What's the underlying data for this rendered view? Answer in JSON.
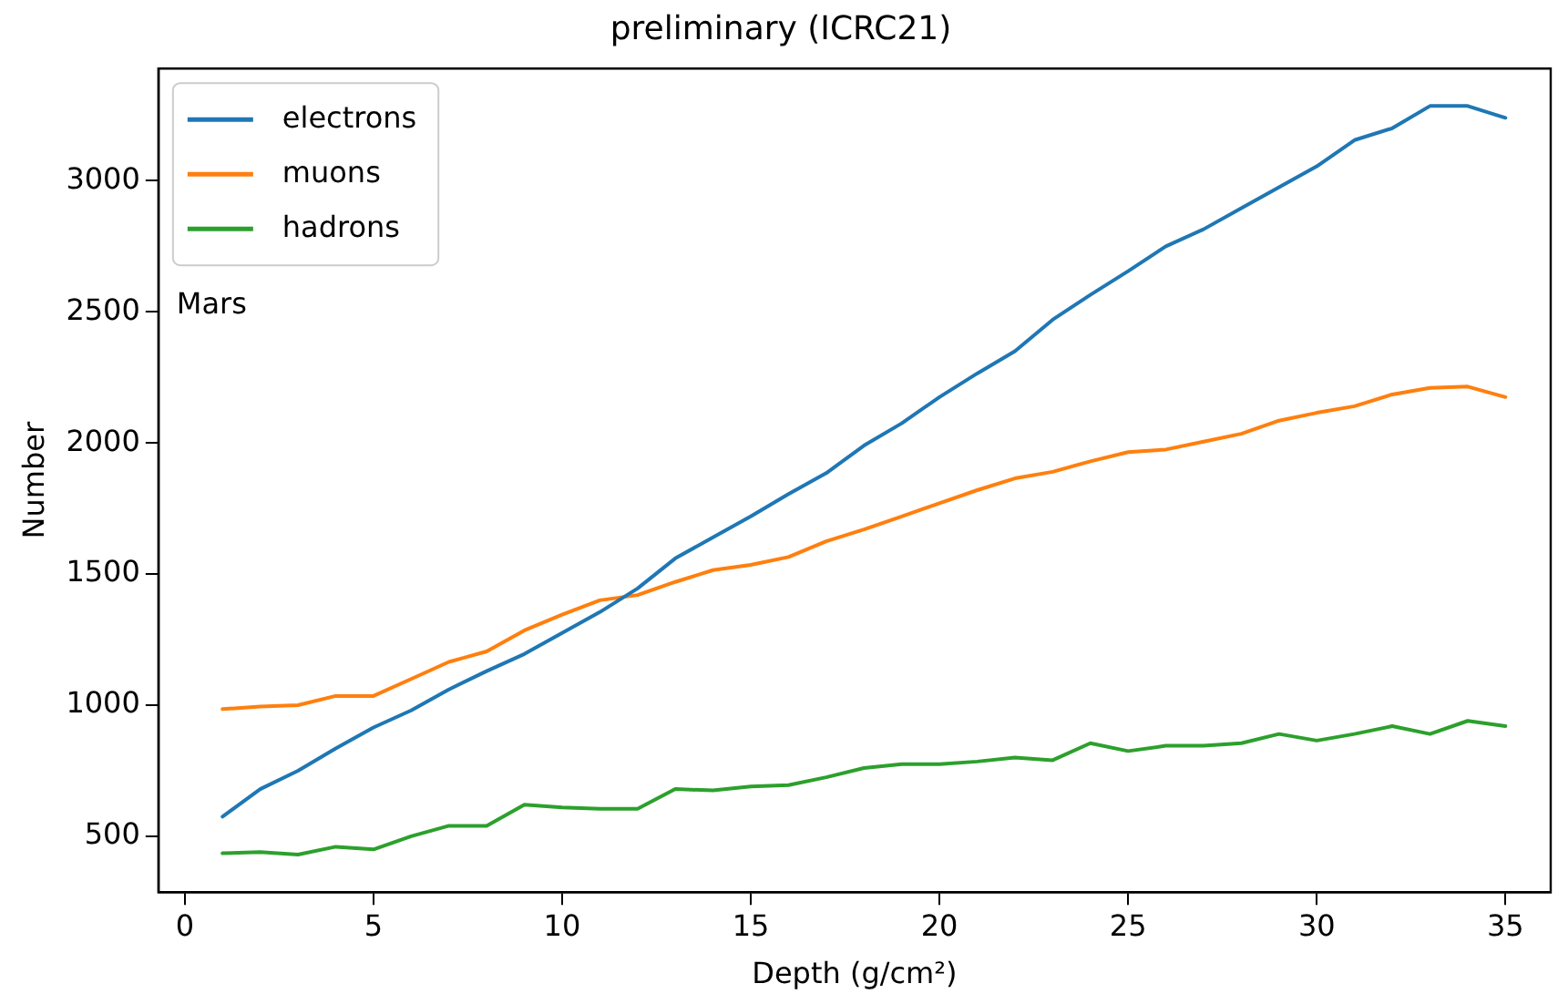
{
  "chart_data": {
    "type": "line",
    "title": "preliminary (ICRC21)",
    "xlabel": "Depth (g/cm²)",
    "ylabel": "Number",
    "annotations": [
      "Mars"
    ],
    "x": [
      1,
      2,
      3,
      4,
      5,
      6,
      7,
      8,
      9,
      10,
      11,
      12,
      13,
      14,
      15,
      16,
      17,
      18,
      19,
      20,
      21,
      22,
      23,
      24,
      25,
      26,
      27,
      28,
      29,
      30,
      31,
      32,
      33,
      34,
      35
    ],
    "series": [
      {
        "name": "electrons",
        "color": "#1f77b4",
        "values": [
          575,
          680,
          750,
          835,
          915,
          980,
          1060,
          1130,
          1195,
          1275,
          1355,
          1445,
          1560,
          1640,
          1720,
          1805,
          1885,
          1990,
          2075,
          2175,
          2265,
          2350,
          2470,
          2565,
          2655,
          2750,
          2815,
          2895,
          2975,
          3055,
          3155,
          3200,
          3285,
          3285,
          3240
        ]
      },
      {
        "name": "muons",
        "color": "#ff7f0e",
        "values": [
          985,
          995,
          1000,
          1035,
          1035,
          1100,
          1165,
          1205,
          1285,
          1345,
          1400,
          1420,
          1470,
          1515,
          1535,
          1565,
          1625,
          1670,
          1720,
          1770,
          1820,
          1865,
          1890,
          1930,
          1965,
          1975,
          2005,
          2035,
          2085,
          2115,
          2140,
          2185,
          2210,
          2215,
          2175
        ]
      },
      {
        "name": "hadrons",
        "color": "#2ca02c",
        "values": [
          435,
          440,
          430,
          460,
          450,
          500,
          540,
          540,
          620,
          610,
          605,
          605,
          680,
          675,
          690,
          695,
          725,
          760,
          775,
          775,
          785,
          800,
          790,
          855,
          825,
          845,
          845,
          855,
          890,
          865,
          890,
          920,
          890,
          940,
          920
        ]
      }
    ],
    "xlim": [
      -0.7,
      36.2
    ],
    "xticks": [
      0,
      5,
      10,
      15,
      20,
      25,
      30,
      35
    ],
    "ylim": [
      287,
      3428
    ],
    "yticks": [
      500,
      1000,
      1500,
      2000,
      2500,
      3000
    ],
    "grid": false,
    "legend": "top left",
    "marker": "none",
    "line_style": "solid"
  }
}
